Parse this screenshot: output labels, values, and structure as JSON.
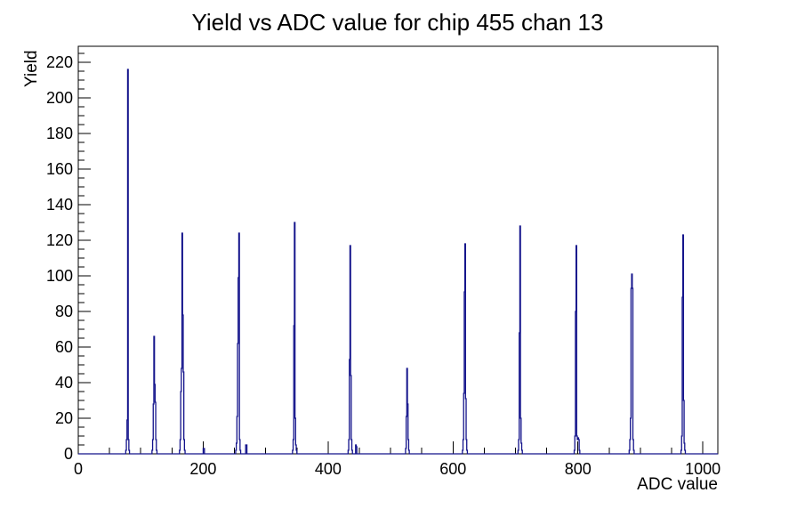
{
  "page": {
    "background_color": "#ffffff"
  },
  "chart_data": {
    "type": "bar",
    "style": "root-step-histogram-outline",
    "title": "Yield vs ADC value for chip 455 chan 13",
    "xlabel": "ADC value",
    "ylabel": "Yield",
    "xlim": [
      0,
      1024
    ],
    "ylim": [
      0,
      229
    ],
    "x_major_ticks": [
      0,
      200,
      400,
      600,
      800,
      1000
    ],
    "x_minor_step": 50,
    "y_major_ticks": [
      0,
      20,
      40,
      60,
      80,
      100,
      120,
      140,
      160,
      180,
      200,
      220
    ],
    "y_minor_step": 5,
    "grid": false,
    "legend": false,
    "line_color": "#13138b",
    "axis_color": "#000000",
    "bins": [
      [
        76,
        2
      ],
      [
        77,
        8
      ],
      [
        78,
        19
      ],
      [
        79,
        216
      ],
      [
        80,
        8
      ],
      [
        81,
        2
      ],
      [
        118,
        2
      ],
      [
        119,
        8
      ],
      [
        120,
        28
      ],
      [
        121,
        66
      ],
      [
        122,
        39
      ],
      [
        123,
        29
      ],
      [
        124,
        8
      ],
      [
        125,
        2
      ],
      [
        162,
        2
      ],
      [
        163,
        8
      ],
      [
        164,
        35
      ],
      [
        165,
        48
      ],
      [
        166,
        124
      ],
      [
        167,
        78
      ],
      [
        168,
        46
      ],
      [
        169,
        8
      ],
      [
        170,
        2
      ],
      [
        200,
        3
      ],
      [
        201,
        3
      ],
      [
        252,
        2
      ],
      [
        253,
        6
      ],
      [
        254,
        21
      ],
      [
        255,
        62
      ],
      [
        256,
        99
      ],
      [
        257,
        124
      ],
      [
        258,
        8
      ],
      [
        259,
        2
      ],
      [
        268,
        5
      ],
      [
        269,
        5
      ],
      [
        343,
        2
      ],
      [
        344,
        8
      ],
      [
        345,
        72
      ],
      [
        346,
        130
      ],
      [
        347,
        20
      ],
      [
        348,
        5
      ],
      [
        349,
        2
      ],
      [
        432,
        2
      ],
      [
        433,
        8
      ],
      [
        434,
        53
      ],
      [
        435,
        117
      ],
      [
        436,
        44
      ],
      [
        437,
        8
      ],
      [
        438,
        2
      ],
      [
        444,
        5
      ],
      [
        445,
        4
      ],
      [
        524,
        3
      ],
      [
        525,
        21
      ],
      [
        526,
        48
      ],
      [
        527,
        28
      ],
      [
        528,
        8
      ],
      [
        529,
        2
      ],
      [
        615,
        2
      ],
      [
        616,
        8
      ],
      [
        617,
        34
      ],
      [
        618,
        91
      ],
      [
        619,
        118
      ],
      [
        620,
        31
      ],
      [
        621,
        8
      ],
      [
        622,
        2
      ],
      [
        704,
        2
      ],
      [
        705,
        8
      ],
      [
        706,
        68
      ],
      [
        707,
        128
      ],
      [
        708,
        20
      ],
      [
        709,
        6
      ],
      [
        710,
        2
      ],
      [
        794,
        2
      ],
      [
        795,
        10
      ],
      [
        796,
        80
      ],
      [
        797,
        117
      ],
      [
        798,
        10
      ],
      [
        799,
        8
      ],
      [
        800,
        9
      ],
      [
        801,
        8
      ],
      [
        802,
        2
      ],
      [
        882,
        2
      ],
      [
        883,
        8
      ],
      [
        884,
        20
      ],
      [
        885,
        93
      ],
      [
        886,
        101
      ],
      [
        887,
        93
      ],
      [
        888,
        8
      ],
      [
        889,
        2
      ],
      [
        965,
        2
      ],
      [
        966,
        10
      ],
      [
        967,
        88
      ],
      [
        968,
        123
      ],
      [
        969,
        30
      ],
      [
        970,
        6
      ],
      [
        971,
        2
      ]
    ]
  }
}
